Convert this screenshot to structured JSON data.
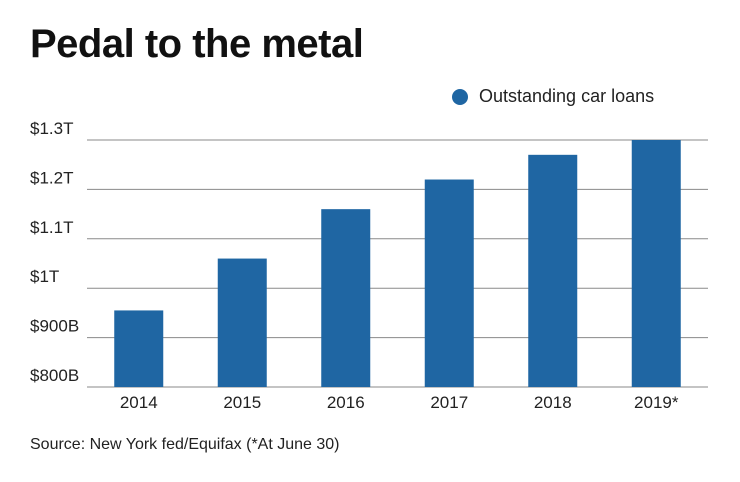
{
  "chart_data": {
    "type": "bar",
    "title": "Pedal to the metal",
    "xlabel": "",
    "ylabel": "",
    "categories": [
      "2014",
      "2015",
      "2016",
      "2017",
      "2018",
      "2019*"
    ],
    "series": [
      {
        "name": "Outstanding car loans",
        "values": [
          0.955,
          1.06,
          1.16,
          1.22,
          1.27,
          1.3
        ],
        "color": "#1f66a3"
      }
    ],
    "ylim": [
      0.8,
      1.3
    ],
    "yticks": [
      {
        "value": 0.8,
        "label": "$800B"
      },
      {
        "value": 0.9,
        "label": "$900B"
      },
      {
        "value": 1.0,
        "label": "$1T"
      },
      {
        "value": 1.1,
        "label": "$1.1T"
      },
      {
        "value": 1.2,
        "label": "$1.2T"
      },
      {
        "value": 1.3,
        "label": "$1.3T"
      }
    ],
    "value_unit": "trillion USD",
    "grid": true,
    "legend_position": "top-right",
    "gridline_color": "#8a8a8a"
  },
  "footer": {
    "source": "Source: New York fed/Equifax (*At June 30)"
  }
}
